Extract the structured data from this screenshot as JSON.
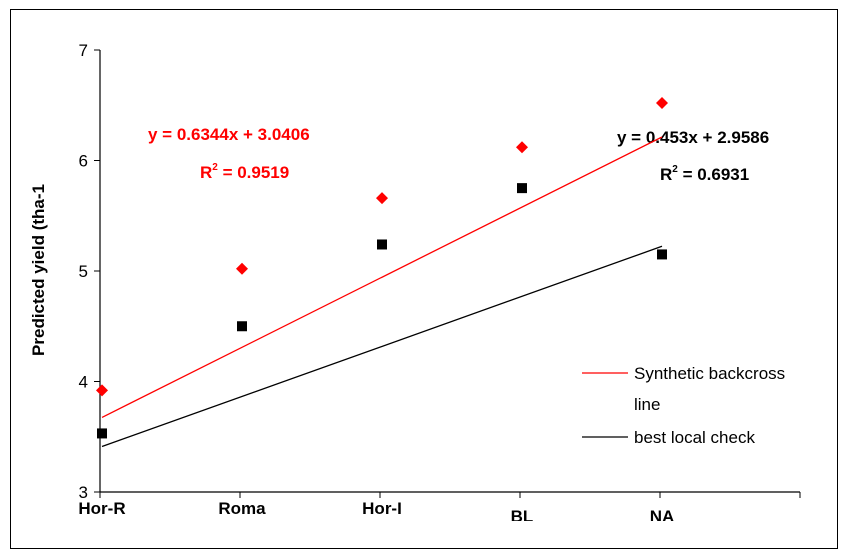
{
  "chart_data": {
    "type": "scatter",
    "title": "",
    "xlabel": "",
    "ylabel": "Predicted yield (tha-1",
    "categories": [
      "Hor-R",
      "Roma",
      "Hor-I",
      "BL",
      "NA"
    ],
    "ylim": [
      3,
      7
    ],
    "yticks": [
      "3",
      "4",
      "5",
      "6",
      "7"
    ],
    "series": [
      {
        "name": "Synthetic backcross line",
        "color": "#ff0000",
        "marker": "diamond",
        "values": [
          3.92,
          5.02,
          5.66,
          6.12,
          6.52
        ],
        "trendline": {
          "slope": 0.6344,
          "intercept": 3.0406
        },
        "equation": "y = 0.6344x + 3.0406",
        "r2_label": "R",
        "r2_sup": "2",
        "r2_value": " = 0.9519"
      },
      {
        "name": "best local check",
        "color": "#000000",
        "marker": "square",
        "values": [
          3.53,
          4.5,
          5.24,
          5.75,
          5.15
        ],
        "trendline": {
          "slope": 0.453,
          "intercept": 2.9586
        },
        "equation": "y = 0.453x + 2.9586",
        "r2_label": "R",
        "r2_sup": "2",
        "r2_value": " = 0.6931"
      }
    ],
    "legend": {
      "placement": "bottom-right",
      "items": [
        {
          "label_line1": "Synthetic backcross",
          "label_line2": "line",
          "color": "#ff0000"
        },
        {
          "label_line1": "best local check",
          "label_line2": "",
          "color": "#000000"
        }
      ]
    }
  }
}
